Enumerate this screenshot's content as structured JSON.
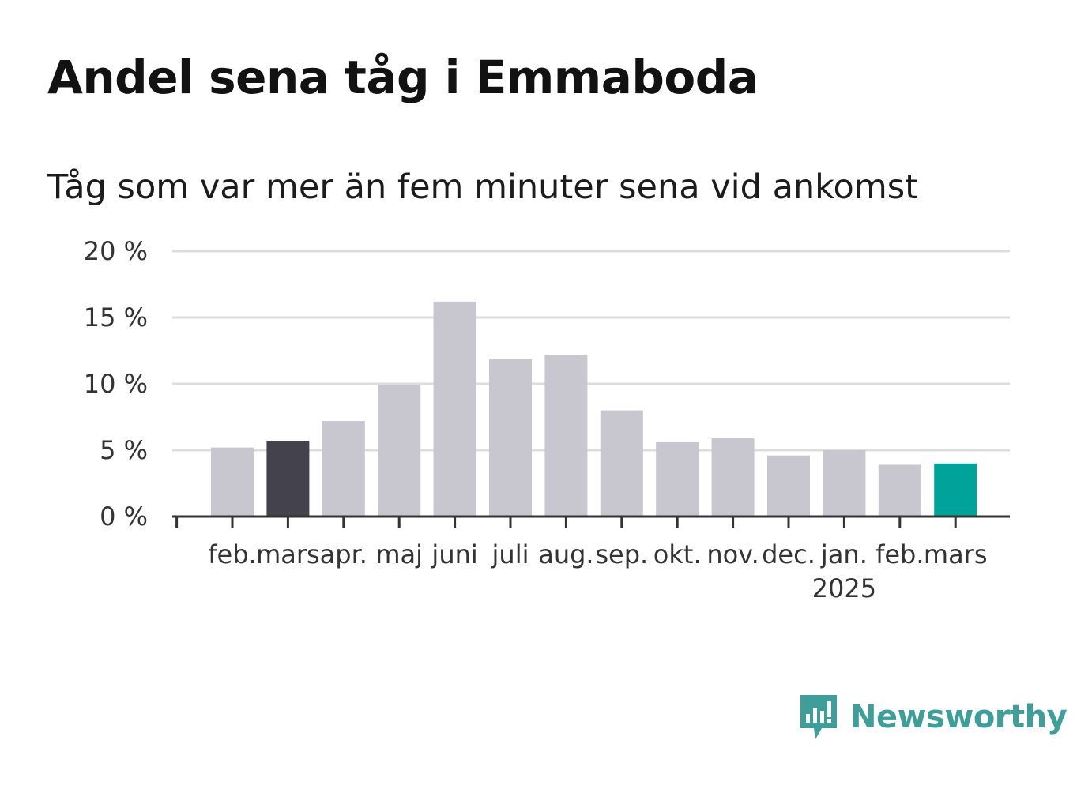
{
  "title": "Andel sena tåg i Emmaboda",
  "subtitle": "Tåg som var mer än fem minuter sena vid ankomst",
  "brand": {
    "name": "Newsworthy",
    "icon": "newsworthy-logo-icon",
    "color": "#3e9e99"
  },
  "colors": {
    "bar": "#c8c7d0",
    "highlight_start": "#43424d",
    "highlight_latest": "#00a399",
    "axis": "#333333",
    "grid": "#dddddd"
  },
  "chart_data": {
    "type": "bar",
    "categories": [
      "feb.",
      "mars",
      "apr.",
      "maj",
      "juni",
      "juli",
      "aug.",
      "sep.",
      "okt.",
      "nov.",
      "dec.",
      "jan.",
      "feb.",
      "mars"
    ],
    "year_label": {
      "text": "2025",
      "under_category_index": 11
    },
    "values": [
      5.2,
      5.7,
      7.2,
      9.9,
      16.2,
      11.9,
      12.2,
      8.0,
      5.6,
      5.9,
      4.6,
      5.0,
      3.9,
      4.0
    ],
    "highlight": {
      "1": "highlight_start",
      "13": "highlight_latest"
    },
    "ylim": [
      0,
      20
    ],
    "yticks": [
      0,
      5,
      10,
      15,
      20
    ],
    "ytick_labels": [
      "0 %",
      "5 %",
      "10 %",
      "15 %",
      "20 %"
    ],
    "grid": true,
    "legend": "none",
    "xlabel": "",
    "ylabel": ""
  }
}
